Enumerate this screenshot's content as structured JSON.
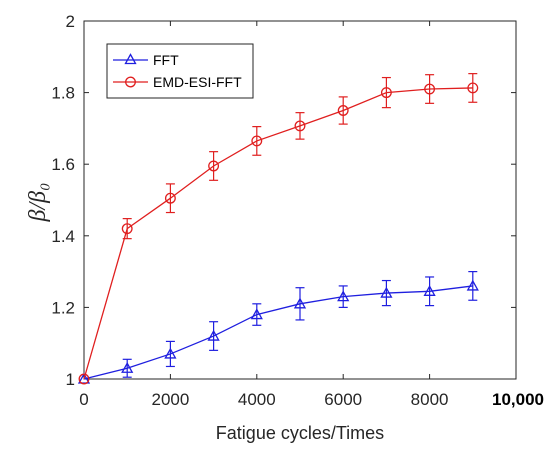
{
  "chart_data": {
    "type": "line",
    "title": "",
    "xlabel": "Fatigue cycles/Times",
    "ylabel": "β/β₀",
    "xlim": [
      0,
      10000
    ],
    "ylim": [
      1,
      2
    ],
    "x_ticks": [
      "0",
      "2000",
      "4000",
      "6000",
      "8000",
      "10,000"
    ],
    "y_ticks": [
      "1",
      "1.2",
      "1.4",
      "1.6",
      "1.8",
      "2"
    ],
    "grid": false,
    "legend_position": "top-left",
    "x": [
      0,
      1000,
      2000,
      3000,
      4000,
      5000,
      6000,
      7000,
      8000,
      9000
    ],
    "series": [
      {
        "name": "FFT",
        "color": "#1f1fdf",
        "marker": "triangle",
        "values": [
          1.0,
          1.03,
          1.07,
          1.12,
          1.18,
          1.21,
          1.23,
          1.24,
          1.245,
          1.26
        ],
        "errors": [
          0.0,
          0.025,
          0.035,
          0.04,
          0.03,
          0.045,
          0.03,
          0.035,
          0.04,
          0.04
        ]
      },
      {
        "name": "EMD-ESI-FFT",
        "color": "#e01f1f",
        "marker": "circle",
        "values": [
          1.0,
          1.42,
          1.505,
          1.595,
          1.665,
          1.707,
          1.75,
          1.8,
          1.81,
          1.813
        ],
        "errors": [
          0.0,
          0.028,
          0.04,
          0.04,
          0.04,
          0.037,
          0.038,
          0.042,
          0.04,
          0.04
        ]
      }
    ]
  }
}
